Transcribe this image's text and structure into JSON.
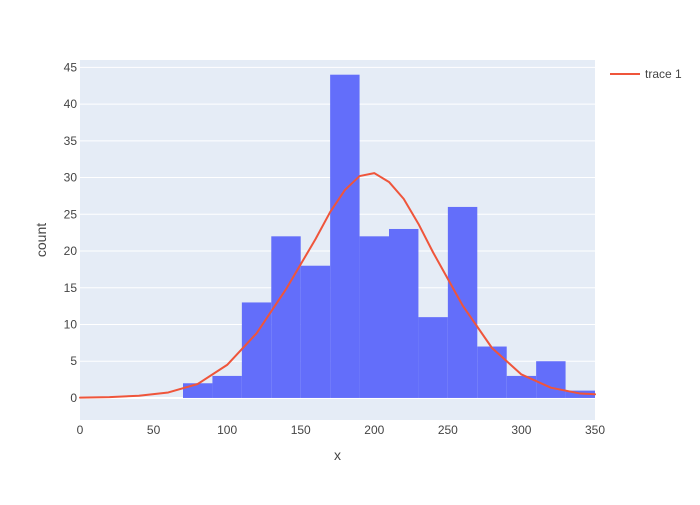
{
  "chart_data": {
    "type": "bar",
    "xlabel": "x",
    "ylabel": "count",
    "xlim": [
      0,
      350
    ],
    "ylim": [
      -3,
      46
    ],
    "xticks": [
      0,
      50,
      100,
      150,
      200,
      250,
      300,
      350
    ],
    "yticks": [
      0,
      5,
      10,
      15,
      20,
      25,
      30,
      35,
      40,
      45
    ],
    "grid": true,
    "histogram": {
      "bin_size": 20,
      "bins": [
        {
          "start": 70,
          "end": 90,
          "count": 2
        },
        {
          "start": 90,
          "end": 110,
          "count": 3
        },
        {
          "start": 110,
          "end": 130,
          "count": 13
        },
        {
          "start": 130,
          "end": 150,
          "count": 22
        },
        {
          "start": 150,
          "end": 170,
          "count": 18
        },
        {
          "start": 170,
          "end": 190,
          "count": 44
        },
        {
          "start": 190,
          "end": 210,
          "count": 22
        },
        {
          "start": 210,
          "end": 230,
          "count": 23
        },
        {
          "start": 230,
          "end": 250,
          "count": 11
        },
        {
          "start": 250,
          "end": 270,
          "count": 26
        },
        {
          "start": 270,
          "end": 290,
          "count": 7
        },
        {
          "start": 290,
          "end": 310,
          "count": 3
        },
        {
          "start": 310,
          "end": 330,
          "count": 5
        },
        {
          "start": 330,
          "end": 350,
          "count": 1
        }
      ]
    },
    "series": [
      {
        "name": "trace 1",
        "type": "line",
        "x": [
          0,
          20,
          40,
          60,
          80,
          100,
          120,
          140,
          160,
          170,
          180,
          190,
          200,
          210,
          220,
          230,
          240,
          260,
          280,
          300,
          320,
          340,
          350
        ],
        "y": [
          0.05,
          0.12,
          0.3,
          0.75,
          1.9,
          4.5,
          8.8,
          14.8,
          21.6,
          25.3,
          28.3,
          30.2,
          30.6,
          29.4,
          27.1,
          23.7,
          19.8,
          12.6,
          6.8,
          3.2,
          1.4,
          0.6,
          0.5
        ]
      }
    ],
    "legend": {
      "position": "top-right",
      "entries": [
        "trace 1"
      ]
    },
    "colors": {
      "bars": "#636efa",
      "line": "#ef553b",
      "plot_bg": "#e5ecf6",
      "grid": "#ffffff",
      "text": "#444444"
    }
  }
}
